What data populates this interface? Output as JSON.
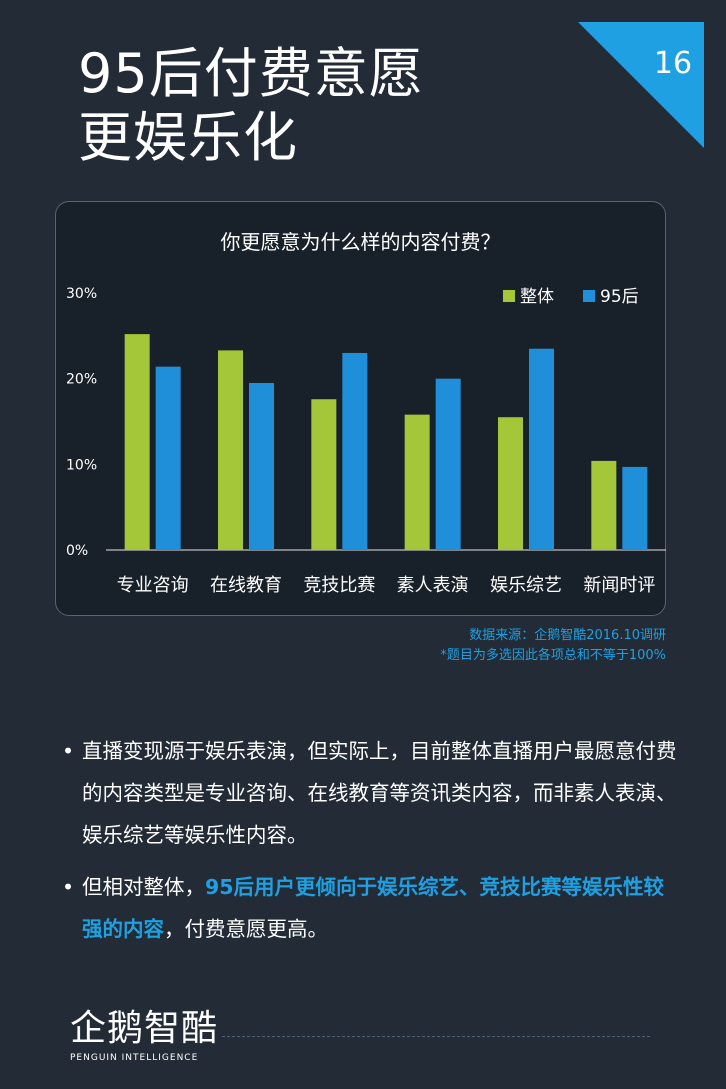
{
  "header": {
    "title_line1": "95后付费意愿",
    "title_line2": "更娱乐化",
    "page_number": "16"
  },
  "colors": {
    "background": "#222b36",
    "panel": "#182029",
    "green": "#a4c639",
    "blue": "#1e8fd8",
    "accent": "#1fa0e2"
  },
  "chart_data": {
    "type": "bar",
    "title": "你更愿意为什么样的内容付费？",
    "categories": [
      "专业咨询",
      "在线教育",
      "竞技比赛",
      "素人表演",
      "娱乐综艺",
      "新闻时评"
    ],
    "series": [
      {
        "name": "整体",
        "color": "#a4c639",
        "values": [
          25.2,
          23.3,
          17.6,
          15.8,
          15.5,
          10.4
        ]
      },
      {
        "name": "95后",
        "color": "#1e8fd8",
        "values": [
          21.4,
          19.5,
          23.0,
          20.0,
          23.5,
          9.7
        ]
      }
    ],
    "ylim": [
      0,
      30
    ],
    "yticks": [
      0,
      10,
      20,
      30
    ],
    "ytick_labels": [
      "0%",
      "10%",
      "20%",
      "30%"
    ],
    "legend_position": "top-right",
    "grid": false
  },
  "source": {
    "line1": "数据来源：企鹅智酷2016.10调研",
    "line2": "*题目为多选因此各项总和不等于100%"
  },
  "bullets": {
    "b1": "直播变现源于娱乐表演，但实际上，目前整体直播用户最愿意付费的内容类型是专业咨询、在线教育等资讯类内容，而非素人表演、娱乐综艺等娱乐性内容。",
    "b2_pre": "但相对整体，",
    "b2_highlight": "95后用户更倾向于娱乐综艺、竞技比赛等娱乐性较强的内容",
    "b2_post": "，付费意愿更高。",
    "dot": "•"
  },
  "logo": {
    "text": "企鹅智酷",
    "subtitle": "PENGUIN INTELLIGENCE"
  }
}
